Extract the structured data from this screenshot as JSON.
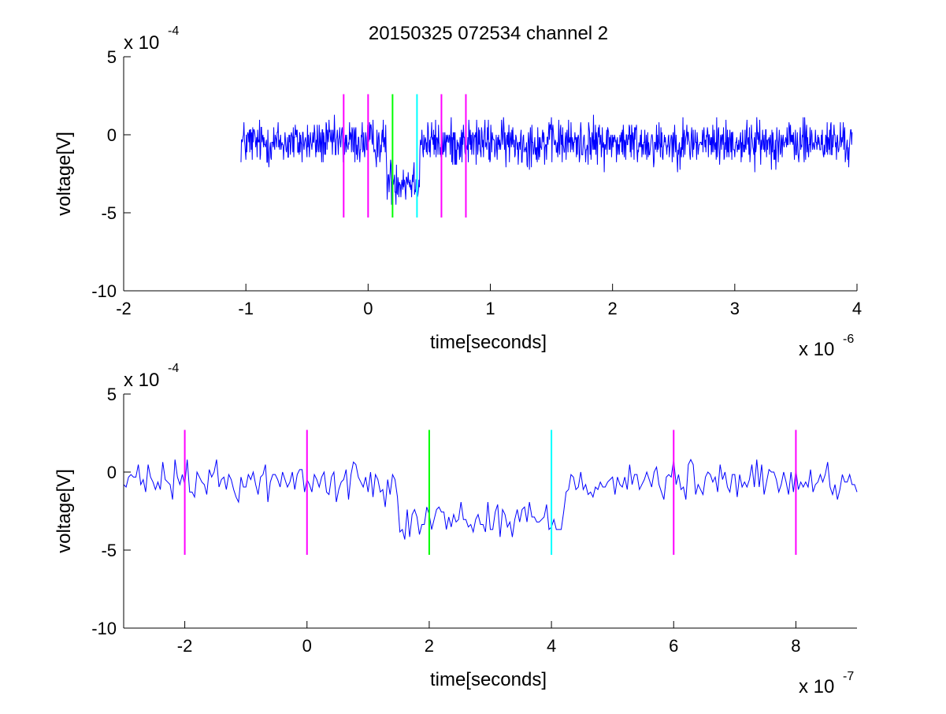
{
  "title": "20150325 072534 channel 2",
  "colors": {
    "trace": "#0000ff",
    "marker_magenta": "#ff00ff",
    "marker_green": "#00ff00",
    "marker_cyan": "#00ffff",
    "axes": "#000000",
    "background": "#ffffff"
  },
  "chart_data": [
    {
      "type": "line",
      "panel": "top",
      "xlabel": "time[seconds]",
      "ylabel": "voltage[V]",
      "x_multiplier": "x 10",
      "x_exponent": "-6",
      "y_multiplier": "x 10",
      "y_exponent": "-4",
      "xlim": [
        -2e-06,
        4e-06
      ],
      "ylim": [
        -0.001,
        0.0005
      ],
      "x_ticks": [
        -2,
        -1,
        0,
        1,
        2,
        3,
        4
      ],
      "x_tick_labels": [
        "-2",
        "-1",
        "0",
        "1",
        "2",
        "3",
        "4"
      ],
      "y_ticks": [
        -10,
        -5,
        0,
        5
      ],
      "y_tick_labels": [
        "-10",
        "-5",
        "0",
        "5"
      ],
      "grid": false,
      "series": [
        {
          "x_range": [
            -1.04e-06,
            3.96e-06
          ],
          "sample_interval": 4e-09,
          "baseline": -5e-05,
          "noise_amplitude": 0.00016,
          "dip_interval": [
            1.5e-07,
            4.2e-07
          ],
          "dip_level": -0.00029
        }
      ],
      "markers": [
        {
          "x": -2e-07,
          "color": "marker_magenta",
          "ymin": -0.00053,
          "ymax": 0.00026
        },
        {
          "x": 0.0,
          "color": "marker_magenta",
          "ymin": -0.00053,
          "ymax": 0.00026
        },
        {
          "x": 2e-07,
          "color": "marker_green",
          "ymin": -0.00053,
          "ymax": 0.00026
        },
        {
          "x": 4e-07,
          "color": "marker_cyan",
          "ymin": -0.00053,
          "ymax": 0.00026
        },
        {
          "x": 6e-07,
          "color": "marker_magenta",
          "ymin": -0.00053,
          "ymax": 0.00026
        },
        {
          "x": 8e-07,
          "color": "marker_magenta",
          "ymin": -0.00053,
          "ymax": 0.00026
        }
      ]
    },
    {
      "type": "line",
      "panel": "bottom",
      "xlabel": "time[seconds]",
      "ylabel": "voltage[V]",
      "x_multiplier": "x 10",
      "x_exponent": "-7",
      "y_multiplier": "x 10",
      "y_exponent": "-4",
      "xlim": [
        -3e-07,
        9e-07
      ],
      "ylim": [
        -0.001,
        0.0005
      ],
      "x_ticks": [
        -2,
        0,
        2,
        4,
        6,
        8
      ],
      "x_tick_labels": [
        "-2",
        "0",
        "2",
        "4",
        "6",
        "8"
      ],
      "y_ticks": [
        -10,
        -5,
        0,
        5
      ],
      "y_tick_labels": [
        "-10",
        "-5",
        "0",
        "5"
      ],
      "grid": false,
      "series": [
        {
          "x_range": [
            -3e-07,
            9e-07
          ],
          "sample_interval": 4e-09,
          "baseline": -6e-05,
          "noise_amplitude": 0.00014,
          "dip_interval": [
            1.5e-07,
            4.2e-07
          ],
          "dip_level": -0.0003
        }
      ],
      "markers": [
        {
          "x": -2e-07,
          "color": "marker_magenta",
          "ymin": -0.00053,
          "ymax": 0.00027
        },
        {
          "x": 0.0,
          "color": "marker_magenta",
          "ymin": -0.00053,
          "ymax": 0.00027
        },
        {
          "x": 2e-07,
          "color": "marker_green",
          "ymin": -0.00053,
          "ymax": 0.00027
        },
        {
          "x": 4e-07,
          "color": "marker_cyan",
          "ymin": -0.00053,
          "ymax": 0.00027
        },
        {
          "x": 6e-07,
          "color": "marker_magenta",
          "ymin": -0.00053,
          "ymax": 0.00027
        },
        {
          "x": 8e-07,
          "color": "marker_magenta",
          "ymin": -0.00053,
          "ymax": 0.00027
        }
      ]
    }
  ]
}
